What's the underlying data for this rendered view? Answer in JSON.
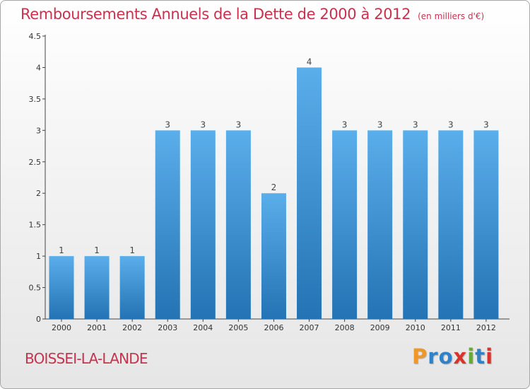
{
  "header": {
    "title": "Remboursements Annuels de la Dette de 2000 à 2012",
    "unit": "(en milliers d'€)"
  },
  "footer": {
    "commune": "BOISSEI-LA-LANDE",
    "logo_text": "Proxiti"
  },
  "colors": {
    "title": "#c8324f",
    "bar_top": "#5aaeea",
    "bar_bottom": "#2473b4",
    "logo": [
      "#f0972a",
      "#2f82c8",
      "#2f82c8",
      "#d8342c",
      "#66a83a",
      "#2f82c8",
      "#d8342c"
    ]
  },
  "chart_data": {
    "type": "bar",
    "title": "Remboursements Annuels de la Dette de 2000 à 2012",
    "subtitle": "(en milliers d'€)",
    "xlabel": "",
    "ylabel": "",
    "categories": [
      "2000",
      "2001",
      "2002",
      "2003",
      "2004",
      "2005",
      "2006",
      "2007",
      "2008",
      "2009",
      "2010",
      "2011",
      "2012"
    ],
    "values": [
      1,
      1,
      1,
      3,
      3,
      3,
      2,
      4,
      3,
      3,
      3,
      3,
      3
    ],
    "data_labels": [
      "1",
      "1",
      "1",
      "3",
      "3",
      "3",
      "2",
      "4",
      "3",
      "3",
      "3",
      "3",
      "3"
    ],
    "ylim": [
      0,
      4.5
    ],
    "yticks": [
      0,
      0.5,
      1,
      1.5,
      2,
      2.5,
      3,
      3.5,
      4,
      4.5
    ],
    "ytick_labels": [
      "0",
      "0.5",
      "1",
      "1.5",
      "2",
      "2.5",
      "3",
      "3.5",
      "4",
      "4.5"
    ],
    "grid": false
  }
}
